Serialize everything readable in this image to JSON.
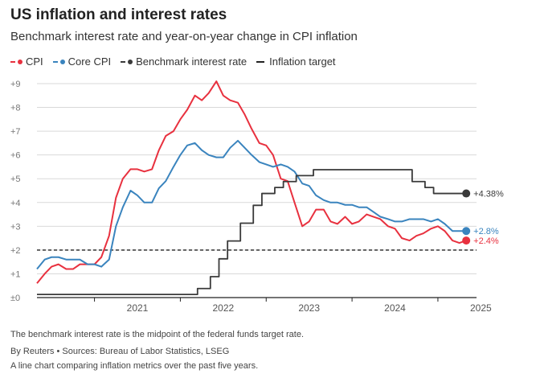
{
  "header": {
    "title": "US inflation and interest rates",
    "subtitle": "Benchmark interest rate and year-on-year change in CPI inflation"
  },
  "legend": {
    "cpi": "CPI",
    "core": "Core CPI",
    "rate": "Benchmark interest rate",
    "target": "Inflation target"
  },
  "colors": {
    "cpi": "#e8313f",
    "core": "#3a84be",
    "rate": "#3a3a3a",
    "target": "#222222",
    "grid": "#d9d9d9"
  },
  "footer": {
    "note": "The benchmark interest rate is the midpoint of the federal funds target rate.",
    "source": "By Reuters • Sources: Bureau of Labor Statistics, LSEG",
    "alt": "A line chart comparing inflation metrics over the past five years."
  },
  "chart_data": {
    "type": "line",
    "title": "US inflation and interest rates",
    "xlabel": "",
    "ylabel": "",
    "xlim": [
      2020.33,
      2025.45
    ],
    "ylim": [
      0,
      9
    ],
    "y_ticks": [
      0,
      1,
      2,
      3,
      4,
      5,
      6,
      7,
      8,
      9
    ],
    "y_tick_labels": [
      "±0",
      "+1",
      "+2",
      "+3",
      "+4",
      "+5",
      "+6",
      "+7",
      "+8",
      "+9"
    ],
    "x_ticks": [
      2021,
      2022,
      2023,
      2024,
      2025
    ],
    "x_tick_labels": [
      "2021",
      "2022",
      "2023",
      "2024",
      "2025"
    ],
    "target": 2.0,
    "end_labels": {
      "cpi": "+2.4%",
      "core": "+2.8%",
      "rate": "+4.38%"
    },
    "series": [
      {
        "name": "CPI",
        "key": "cpi",
        "x": [
          2020.33,
          2020.42,
          2020.5,
          2020.58,
          2020.67,
          2020.75,
          2020.83,
          2020.92,
          2021.0,
          2021.08,
          2021.17,
          2021.25,
          2021.33,
          2021.42,
          2021.5,
          2021.58,
          2021.67,
          2021.75,
          2021.83,
          2021.92,
          2022.0,
          2022.08,
          2022.17,
          2022.25,
          2022.33,
          2022.42,
          2022.5,
          2022.58,
          2022.67,
          2022.75,
          2022.83,
          2022.92,
          2023.0,
          2023.08,
          2023.17,
          2023.25,
          2023.33,
          2023.42,
          2023.5,
          2023.58,
          2023.67,
          2023.75,
          2023.83,
          2023.92,
          2024.0,
          2024.08,
          2024.17,
          2024.25,
          2024.33,
          2024.42,
          2024.5,
          2024.58,
          2024.67,
          2024.75,
          2024.83,
          2024.92,
          2025.0,
          2025.08,
          2025.17,
          2025.25,
          2025.33
        ],
        "values": [
          0.6,
          1.0,
          1.3,
          1.4,
          1.2,
          1.2,
          1.4,
          1.4,
          1.4,
          1.7,
          2.6,
          4.2,
          5.0,
          5.4,
          5.4,
          5.3,
          5.4,
          6.2,
          6.8,
          7.0,
          7.5,
          7.9,
          8.5,
          8.3,
          8.6,
          9.1,
          8.5,
          8.3,
          8.2,
          7.7,
          7.1,
          6.5,
          6.4,
          6.0,
          5.0,
          4.9,
          4.0,
          3.0,
          3.2,
          3.7,
          3.7,
          3.2,
          3.1,
          3.4,
          3.1,
          3.2,
          3.5,
          3.4,
          3.3,
          3.0,
          2.9,
          2.5,
          2.4,
          2.6,
          2.7,
          2.9,
          3.0,
          2.8,
          2.4,
          2.3,
          2.4
        ]
      },
      {
        "name": "Core CPI",
        "key": "core",
        "x": [
          2020.33,
          2020.42,
          2020.5,
          2020.58,
          2020.67,
          2020.75,
          2020.83,
          2020.92,
          2021.0,
          2021.08,
          2021.17,
          2021.25,
          2021.33,
          2021.42,
          2021.5,
          2021.58,
          2021.67,
          2021.75,
          2021.83,
          2021.92,
          2022.0,
          2022.08,
          2022.17,
          2022.25,
          2022.33,
          2022.42,
          2022.5,
          2022.58,
          2022.67,
          2022.75,
          2022.83,
          2022.92,
          2023.0,
          2023.08,
          2023.17,
          2023.25,
          2023.33,
          2023.42,
          2023.5,
          2023.58,
          2023.67,
          2023.75,
          2023.83,
          2023.92,
          2024.0,
          2024.08,
          2024.17,
          2024.25,
          2024.33,
          2024.42,
          2024.5,
          2024.58,
          2024.67,
          2024.75,
          2024.83,
          2024.92,
          2025.0,
          2025.08,
          2025.17,
          2025.25,
          2025.33
        ],
        "values": [
          1.2,
          1.6,
          1.7,
          1.7,
          1.6,
          1.6,
          1.6,
          1.4,
          1.4,
          1.3,
          1.6,
          3.0,
          3.8,
          4.5,
          4.3,
          4.0,
          4.0,
          4.6,
          4.9,
          5.5,
          6.0,
          6.4,
          6.5,
          6.2,
          6.0,
          5.9,
          5.9,
          6.3,
          6.6,
          6.3,
          6.0,
          5.7,
          5.6,
          5.5,
          5.6,
          5.5,
          5.3,
          4.8,
          4.7,
          4.3,
          4.1,
          4.0,
          4.0,
          3.9,
          3.9,
          3.8,
          3.8,
          3.6,
          3.4,
          3.3,
          3.2,
          3.2,
          3.3,
          3.3,
          3.3,
          3.2,
          3.3,
          3.1,
          2.8,
          2.8,
          2.8
        ]
      },
      {
        "name": "Benchmark interest rate",
        "key": "rate",
        "step": true,
        "x": [
          2020.33,
          2022.2,
          2022.35,
          2022.45,
          2022.55,
          2022.7,
          2022.85,
          2022.95,
          2023.1,
          2023.2,
          2023.35,
          2023.55,
          2024.7,
          2024.85,
          2024.95,
          2025.33
        ],
        "values": [
          0.13,
          0.38,
          0.88,
          1.63,
          2.38,
          3.13,
          3.88,
          4.38,
          4.63,
          4.88,
          5.13,
          5.38,
          4.88,
          4.63,
          4.38,
          4.38
        ]
      }
    ]
  }
}
